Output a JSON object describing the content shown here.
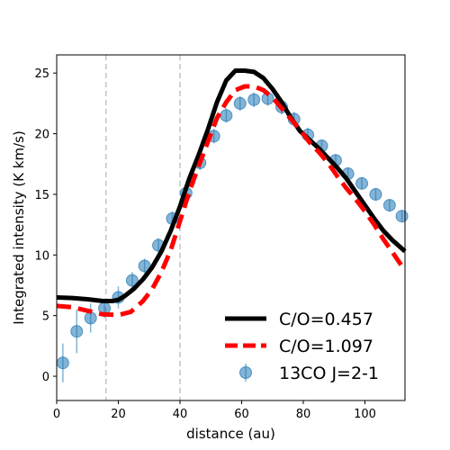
{
  "chart_data": {
    "type": "line",
    "xlabel": "distance (au)",
    "ylabel": "Integrated intensity (K km/s)",
    "xlim": [
      0,
      113
    ],
    "ylim": [
      -2,
      26.5
    ],
    "xticks": [
      0,
      20,
      40,
      60,
      80,
      100
    ],
    "yticks": [
      0,
      5,
      10,
      15,
      20,
      25
    ],
    "grid": false,
    "legend_position": "lower-right",
    "vertical_lines": [
      16,
      40
    ],
    "series": [
      {
        "name": "C/O=0.457",
        "kind": "line",
        "color": "#000000",
        "style": "solid",
        "x": [
          0,
          5,
          10,
          15,
          18,
          20,
          22,
          25,
          28,
          31,
          34,
          37,
          40,
          43,
          46,
          49,
          52,
          55,
          58,
          61,
          64,
          67,
          70,
          73,
          76,
          79,
          82,
          85,
          88,
          91,
          94,
          97,
          100,
          103,
          106,
          109,
          113
        ],
        "y": [
          6.5,
          6.45,
          6.35,
          6.2,
          6.2,
          6.3,
          6.6,
          7.2,
          8.0,
          9.0,
          10.3,
          12.0,
          14.0,
          16.3,
          18.2,
          20.3,
          22.6,
          24.4,
          25.2,
          25.2,
          25.1,
          24.6,
          23.7,
          22.6,
          21.3,
          20.2,
          19.5,
          18.8,
          18.0,
          17.2,
          16.3,
          15.2,
          14.1,
          13.0,
          12.0,
          11.2,
          10.3
        ]
      },
      {
        "name": "C/O=1.097",
        "kind": "line",
        "color": "#ff0000",
        "style": "dashed",
        "x": [
          0,
          5,
          10,
          15,
          20,
          24,
          28,
          31,
          34,
          37,
          40,
          43,
          46,
          49,
          52,
          55,
          58,
          61,
          64,
          67,
          70,
          73,
          76,
          79,
          82,
          85,
          88,
          91,
          94,
          97,
          100,
          103,
          106,
          109,
          113
        ],
        "y": [
          5.8,
          5.7,
          5.4,
          5.1,
          5.05,
          5.3,
          6.2,
          7.2,
          8.6,
          10.4,
          12.8,
          15.2,
          17.3,
          19.3,
          21.3,
          22.6,
          23.6,
          23.9,
          23.9,
          23.6,
          23.0,
          22.1,
          21.2,
          20.3,
          19.3,
          18.5,
          17.6,
          16.5,
          15.5,
          14.6,
          13.6,
          12.5,
          11.3,
          10.2,
          8.7
        ]
      },
      {
        "name": "13CO J=2-1",
        "kind": "scatter",
        "color": "#1f77b4",
        "x": [
          2,
          6.5,
          11,
          15.5,
          20,
          24.5,
          28.5,
          33,
          37.5,
          42,
          46.5,
          51,
          55,
          59.5,
          64,
          68.5,
          73,
          77,
          81.5,
          86,
          90.5,
          94.5,
          99,
          103.5,
          108,
          112
        ],
        "y": [
          1.1,
          3.7,
          4.8,
          5.6,
          6.5,
          7.9,
          9.1,
          10.8,
          13.0,
          15.1,
          17.6,
          19.8,
          21.5,
          22.5,
          22.8,
          22.9,
          22.2,
          21.2,
          19.9,
          19.0,
          17.8,
          16.7,
          15.9,
          15.0,
          14.1,
          13.2
        ],
        "err": [
          1.6,
          1.8,
          1.2,
          0.8,
          0.9,
          0.7,
          0.6,
          0.6,
          0.6,
          0.6,
          0.6,
          0.6,
          0.6,
          0.6,
          0.6,
          0.6,
          0.6,
          0.6,
          0.6,
          0.5,
          0.5,
          0.5,
          0.5,
          0.5,
          0.5,
          0.5
        ]
      }
    ]
  }
}
